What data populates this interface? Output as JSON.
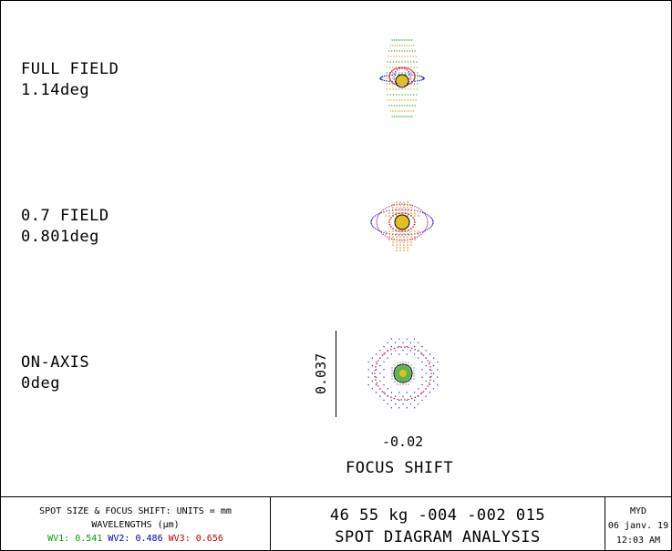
{
  "fields": [
    {
      "name": "FULL FIELD",
      "angle": "1.14deg"
    },
    {
      "name": "0.7 FIELD",
      "angle": "0.801deg"
    },
    {
      "name": "ON-AXIS",
      "angle": "0deg"
    }
  ],
  "scale_value": "0.037",
  "focus_shift_value": "-0.02",
  "focus_shift_label": "FOCUS SHIFT",
  "footer": {
    "units_line": "SPOT SIZE & FOCUS SHIFT: UNITS = mm",
    "wavelengths_label": "WAVELENGTHS (µm)",
    "wavelengths": [
      {
        "label": "WV1:",
        "value": "0.541",
        "color": "#00a000"
      },
      {
        "label": "WV2:",
        "value": "0.486",
        "color": "#0000c0"
      },
      {
        "label": "WV3:",
        "value": "0.656",
        "color": "#c00000"
      }
    ],
    "design_id": "46 55 kg -004 -002 015",
    "analysis_title": "SPOT DIAGRAM ANALYSIS",
    "author": "MYD",
    "date": "06 janv. 19",
    "time": "12:03 AM"
  }
}
